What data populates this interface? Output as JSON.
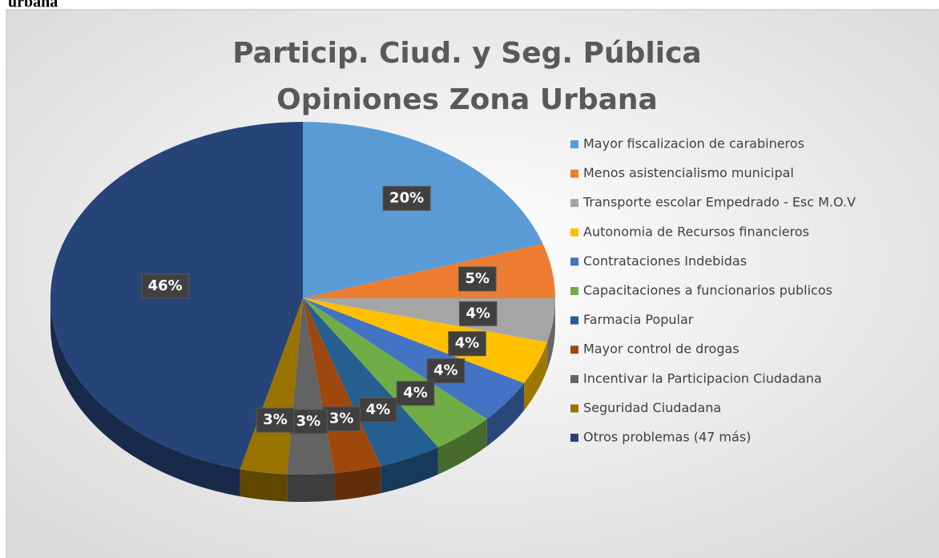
{
  "caption": "urbana",
  "chart_data": {
    "type": "pie",
    "title": [
      "Particip. Ciud. y Seg. Pública",
      "Opiniones Zona Urbana"
    ],
    "categories": [
      "Mayor fiscalizacion de carabineros",
      "Menos asistencialismo municipal",
      "Transporte escolar Empedrado - Esc M.O.V",
      "Autonomia de Recursos financieros",
      "Contrataciones Indebidas",
      "Capacitaciones a funcionarios publicos",
      "Farmacia Popular",
      "Mayor control de drogas",
      "Incentivar la Participacion Ciudadana",
      "Seguridad Ciudadana",
      "Otros problemas  (47 más)"
    ],
    "values": [
      20,
      5,
      4,
      4,
      4,
      4,
      4,
      3,
      3,
      3,
      46
    ],
    "value_labels": [
      "20%",
      "5%",
      "4%",
      "4%",
      "4%",
      "4%",
      "4%",
      "3%",
      "3%",
      "3%",
      "46%"
    ],
    "colors": [
      "#5b9bd5",
      "#ed7d31",
      "#a5a5a5",
      "#ffc000",
      "#4472c4",
      "#70ad47",
      "#255e91",
      "#9e480e",
      "#636363",
      "#997300",
      "#264478"
    ],
    "legend": "right"
  }
}
